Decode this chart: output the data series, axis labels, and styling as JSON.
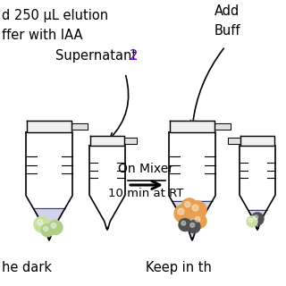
{
  "background_color": "#ffffff",
  "text_top_left_line1": "d 250 μL elution",
  "text_top_left_line2": "ffer with IAA",
  "text_supernatant": "Supernatant ",
  "text_supernatant_num": "2",
  "text_supernatant_num_color": "#6600cc",
  "text_add": "Add",
  "text_buff": "Buff",
  "text_arrow_label1": "On Mixer",
  "text_arrow_label2": "10 min at RT",
  "text_bottom_left": "he dark",
  "text_bottom_right": "Keep in th",
  "tube_outline_color": "#000000",
  "tube_fill_color": "#ffffff",
  "tube_liquid_color": "#c8cce8",
  "cap_fill_color": "#f0f0f0",
  "bead_green1": "#c8dfa0",
  "bead_green2": "#b0ce88",
  "bead_orange": "#e8a050",
  "bead_dark": "#505050",
  "arrow_color": "#000000"
}
